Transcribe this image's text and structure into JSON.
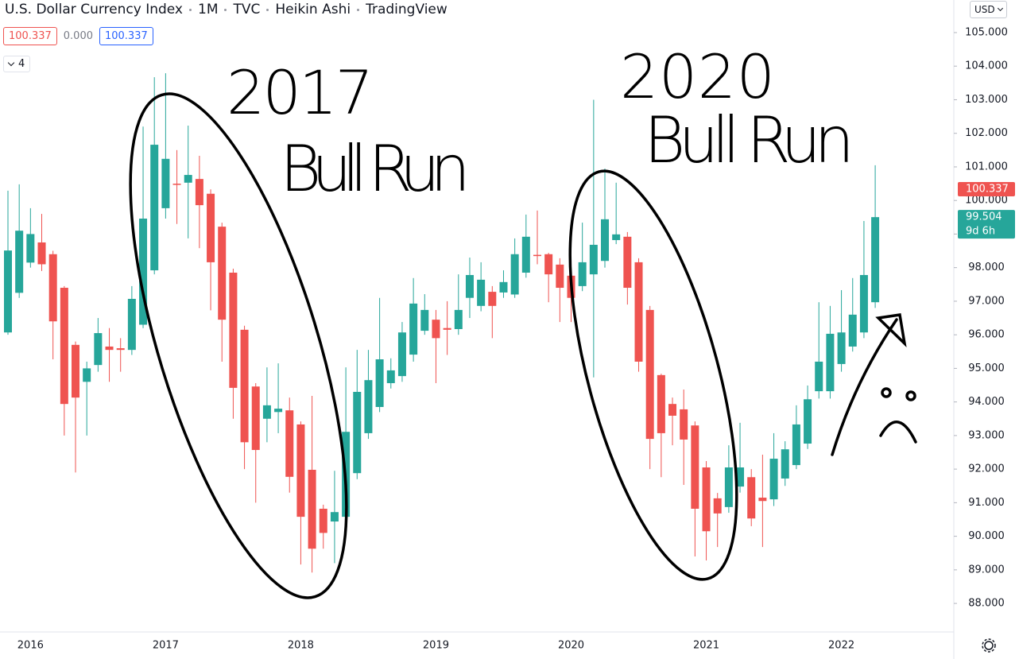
{
  "header": {
    "symbol": "U.S. Dollar Currency Index",
    "interval": "1M",
    "exchange": "TVC",
    "chart_style": "Heikin Ashi",
    "source": "TradingView",
    "values": [
      "100.337",
      "0.000",
      "100.337"
    ],
    "indicators": "4",
    "currency": "USD"
  },
  "chart_data": {
    "type": "candlestick",
    "categories": [
      null,
      null,
      "2016",
      null,
      null,
      null,
      null,
      null,
      null,
      null,
      null,
      null,
      null,
      null,
      "2017",
      null,
      null,
      null,
      null,
      null,
      null,
      null,
      null,
      null,
      null,
      null,
      "2018",
      null,
      null,
      null,
      null,
      null,
      null,
      null,
      null,
      null,
      null,
      null,
      "2019",
      null,
      null,
      null,
      null,
      null,
      null,
      null,
      null,
      null,
      null,
      null,
      "2020",
      null,
      null,
      null,
      null,
      null,
      null,
      null,
      null,
      null,
      null,
      null,
      "2021",
      null,
      null,
      null,
      null,
      null,
      null,
      null,
      null,
      null,
      null,
      null,
      "2022",
      null,
      null,
      null
    ],
    "open": [
      96.07,
      97.25,
      98.15,
      98.75,
      98.4,
      97.4,
      95.7,
      94.6,
      95.1,
      95.65,
      95.6,
      95.55,
      96.3,
      97.92,
      99.77,
      100.5,
      100.53,
      100.64,
      100.2,
      99.22,
      97.85,
      96.15,
      94.46,
      93.5,
      93.7,
      93.75,
      93.33,
      91.98,
      90.82,
      90.44,
      90.58,
      91.88,
      93.07,
      93.85,
      94.56,
      94.77,
      95.41,
      96.12,
      96.45,
      96.2,
      96.17,
      97.1,
      96.86,
      97.28,
      97.26,
      97.2,
      97.85,
      98.38,
      98.4,
      98.09,
      97.76,
      97.45,
      97.8,
      98.2,
      98.82,
      98.92,
      98.16,
      96.74,
      94.8,
      93.94,
      93.78,
      93.3,
      92.05,
      91.13,
      90.87,
      91.48,
      91.76,
      91.15,
      91.1,
      91.72,
      92.12,
      92.76,
      94.32,
      94.32,
      95.13,
      95.65,
      96.07,
      96.97
    ],
    "high": [
      100.29,
      100.48,
      99.77,
      99.6,
      98.5,
      97.45,
      95.8,
      95.2,
      96.5,
      96.2,
      95.9,
      97.45,
      102.2,
      103.67,
      103.79,
      101.5,
      102.23,
      101.33,
      100.33,
      99.34,
      97.97,
      96.27,
      94.56,
      95.03,
      95.15,
      94.13,
      93.42,
      94.18,
      90.94,
      91.95,
      95.03,
      95.55,
      95.55,
      97.1,
      95.3,
      96.38,
      97.69,
      97.21,
      96.74,
      97.0,
      97.8,
      98.3,
      98.16,
      97.45,
      97.92,
      98.87,
      99.58,
      99.7,
      98.44,
      98.28,
      97.92,
      99.34,
      103.0,
      100.95,
      100.53,
      99.06,
      98.28,
      96.86,
      94.84,
      94.13,
      94.37,
      93.42,
      92.24,
      91.29,
      92.71,
      93.38,
      92.0,
      92.43,
      93.07,
      92.83,
      93.9,
      94.49,
      96.97,
      96.86,
      97.33,
      97.69,
      99.39,
      101.05
    ],
    "low": [
      96.0,
      97.1,
      98.0,
      97.9,
      95.27,
      93.0,
      91.9,
      93.0,
      94.9,
      94.6,
      94.9,
      95.4,
      96.2,
      97.8,
      99.46,
      99.3,
      98.87,
      98.58,
      96.73,
      95.2,
      93.5,
      92.0,
      91.0,
      92.8,
      93.07,
      91.3,
      89.16,
      88.92,
      89.63,
      89.2,
      90.4,
      91.7,
      92.9,
      93.7,
      94.4,
      94.6,
      95.2,
      96.0,
      94.56,
      95.4,
      96.0,
      96.5,
      96.7,
      95.9,
      97.1,
      97.1,
      97.7,
      98.1,
      96.97,
      96.38,
      96.38,
      97.3,
      94.73,
      98.0,
      98.7,
      96.9,
      94.9,
      92.0,
      91.76,
      92.71,
      91.53,
      89.4,
      89.28,
      89.68,
      90.7,
      91.3,
      90.3,
      89.68,
      90.9,
      91.5,
      92.0,
      92.6,
      94.1,
      94.1,
      94.9,
      95.5,
      95.9,
      96.8
    ],
    "close": [
      98.51,
      99.1,
      99.0,
      98.1,
      96.4,
      93.94,
      94.13,
      95.0,
      96.05,
      95.55,
      95.55,
      97.07,
      99.46,
      101.66,
      101.24,
      100.48,
      100.76,
      99.86,
      98.16,
      96.45,
      94.42,
      92.8,
      92.57,
      93.9,
      93.8,
      91.77,
      90.58,
      89.63,
      90.1,
      90.72,
      93.11,
      94.3,
      94.65,
      95.27,
      94.94,
      96.07,
      96.93,
      96.74,
      95.9,
      96.15,
      96.74,
      97.78,
      97.64,
      96.86,
      97.57,
      98.4,
      98.92,
      98.37,
      97.8,
      97.4,
      97.1,
      98.16,
      98.68,
      99.44,
      98.99,
      97.4,
      95.2,
      92.9,
      93.07,
      93.59,
      92.88,
      90.82,
      90.15,
      90.68,
      92.05,
      92.05,
      90.53,
      91.05,
      92.31,
      92.59,
      93.33,
      94.08,
      95.2,
      96.03,
      96.07,
      96.6,
      97.78,
      99.504
    ],
    "up_color": "#26a69a",
    "down_color": "#ef5350",
    "ylim": [
      87.15,
      105.97
    ],
    "yticks": [
      {
        "value": 88,
        "label": "88.000"
      },
      {
        "value": 89,
        "label": "89.000"
      },
      {
        "value": 90,
        "label": "90.000"
      },
      {
        "value": 91,
        "label": "91.000"
      },
      {
        "value": 92,
        "label": "92.000"
      },
      {
        "value": 93,
        "label": "93.000"
      },
      {
        "value": 94,
        "label": "94.000"
      },
      {
        "value": 95,
        "label": "95.000"
      },
      {
        "value": 96,
        "label": "96.000"
      },
      {
        "value": 97,
        "label": "97.000"
      },
      {
        "value": 98,
        "label": "98.000"
      },
      {
        "value": 99,
        "label": "99.000"
      },
      {
        "value": 100,
        "label": "100.000"
      },
      {
        "value": 101,
        "label": "101.000"
      },
      {
        "value": 102,
        "label": "102.000"
      },
      {
        "value": 103,
        "label": "103.000"
      },
      {
        "value": 104,
        "label": "104.000"
      },
      {
        "value": 105,
        "label": "105.000"
      }
    ],
    "price_labels": [
      {
        "value": 100.337,
        "color": "#ef5350"
      },
      {
        "value": 99.504,
        "color": "#26a69a",
        "countdown": "9d 6h"
      }
    ],
    "annotations": [
      "2017",
      "Bull Run",
      "2020",
      "Bull Run"
    ]
  }
}
